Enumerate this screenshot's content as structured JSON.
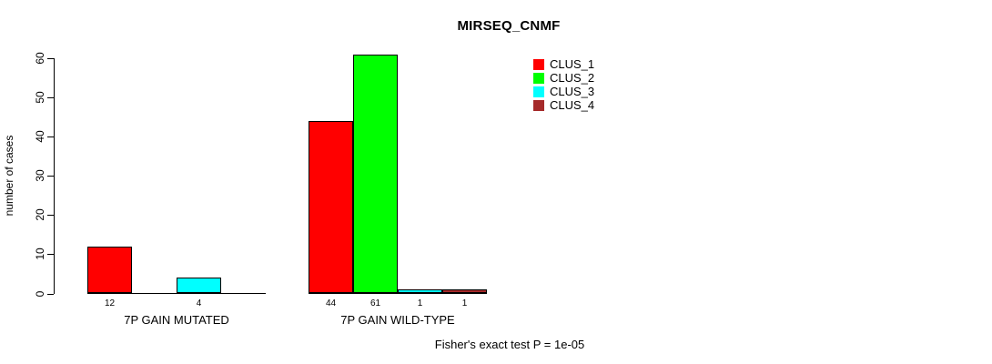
{
  "title": "MIRSEQ_CNMF",
  "ylabel": "number of cases",
  "footer": "Fisher's exact test P = 1e-05",
  "legend": [
    {
      "label": "CLUS_1",
      "color": "#FF0000"
    },
    {
      "label": "CLUS_2",
      "color": "#00FF00"
    },
    {
      "label": "CLUS_3",
      "color": "#00FFFF"
    },
    {
      "label": "CLUS_4",
      "color": "#A52A2A"
    }
  ],
  "chart_data": {
    "type": "bar",
    "title": "MIRSEQ_CNMF",
    "xlabel": "",
    "ylabel": "number of cases",
    "ylim": [
      0,
      60
    ],
    "yticks": [
      0,
      10,
      20,
      30,
      40,
      50,
      60
    ],
    "grid": false,
    "legend_position": "top-right-outside",
    "categories": [
      "7P GAIN MUTATED",
      "7P GAIN WILD-TYPE"
    ],
    "series": [
      {
        "name": "CLUS_1",
        "color": "#FF0000",
        "values": [
          12,
          44
        ]
      },
      {
        "name": "CLUS_2",
        "color": "#00FF00",
        "values": [
          0,
          61
        ]
      },
      {
        "name": "CLUS_3",
        "color": "#00FFFF",
        "values": [
          4,
          1
        ]
      },
      {
        "name": "CLUS_4",
        "color": "#A52A2A",
        "values": [
          0,
          1
        ]
      }
    ],
    "bar_value_labels": {
      "7P GAIN MUTATED": [
        12,
        null,
        4,
        null
      ],
      "7P GAIN WILD-TYPE": [
        44,
        61,
        1,
        1
      ]
    },
    "annotation": "Fisher's exact test P = 1e-05"
  }
}
